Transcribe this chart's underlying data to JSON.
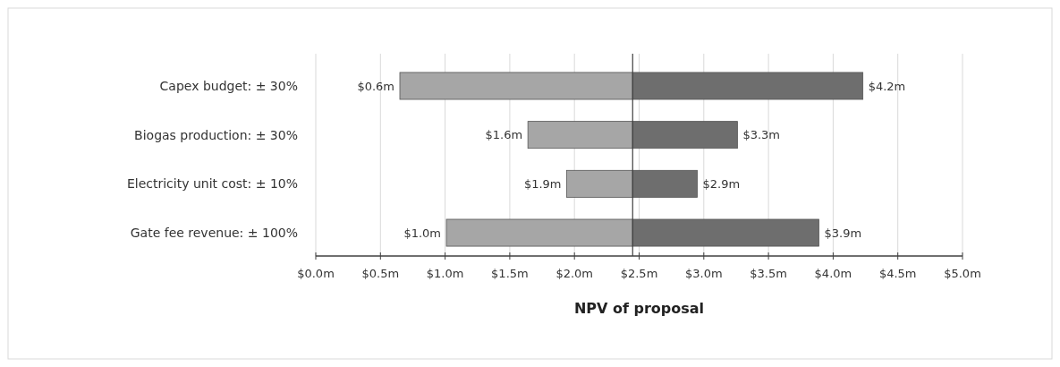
{
  "chart_data": {
    "type": "bar",
    "orientation": "horizontal",
    "xlabel": "NPV of proposal",
    "categories": [
      "Capex budget: ± 30%",
      "Biogas production: ± 30%",
      "Electricity unit cost: ± 10%",
      "Gate fee revenue: ± 100%"
    ],
    "series": [
      {
        "color": "#a6a6a6",
        "base": [
          0.65,
          1.64,
          1.94,
          1.01
        ],
        "values": [
          1.8,
          0.81,
          0.51,
          1.44
        ]
      },
      {
        "color": "#6e6e6e",
        "base": [
          2.45,
          2.45,
          2.45,
          2.45
        ],
        "values": [
          1.78,
          0.81,
          0.5,
          1.44
        ]
      }
    ],
    "annotations": [
      {
        "text": "$0.6m",
        "x": 0.65,
        "y": "Capex budget: ± 30%"
      },
      {
        "text": "$1.6m",
        "x": 1.64,
        "y": "Biogas production: ± 30%"
      },
      {
        "text": "$1.9m",
        "x": 1.94,
        "y": "Electricity unit cost: ± 10%"
      },
      {
        "text": "$1.0m",
        "x": 1.01,
        "y": "Gate fee revenue: ± 100%"
      },
      {
        "text": "$4.2m",
        "x": 4.23,
        "y": "Capex budget: ± 30%"
      },
      {
        "text": "$3.3m",
        "x": 3.26,
        "y": "Biogas production: ± 30%"
      },
      {
        "text": "$2.9m",
        "x": 2.95,
        "y": "Electricity unit cost: ± 10%"
      },
      {
        "text": "$3.9m",
        "x": 3.89,
        "y": "Gate fee revenue: ± 100%"
      }
    ],
    "xlim": [
      0,
      5
    ],
    "xticks": [
      {
        "value": 0,
        "label": "$0.0m"
      },
      {
        "value": 0.5,
        "label": "$0.5m"
      },
      {
        "value": 1,
        "label": "$1.0m"
      },
      {
        "value": 1.5,
        "label": "$1.5m"
      },
      {
        "value": 2,
        "label": "$2.0m"
      },
      {
        "value": 2.5,
        "label": "$2.5m"
      },
      {
        "value": 3,
        "label": "$3.0m"
      },
      {
        "value": 3.5,
        "label": "$3.5m"
      },
      {
        "value": 4,
        "label": "$4.0m"
      },
      {
        "value": 4.5,
        "label": "$4.5m"
      },
      {
        "value": 5,
        "label": "$5.0m"
      }
    ],
    "grid": "x",
    "ref_lines": [
      {
        "axis": "x",
        "value": 2.45,
        "color": "#404040"
      }
    ]
  }
}
